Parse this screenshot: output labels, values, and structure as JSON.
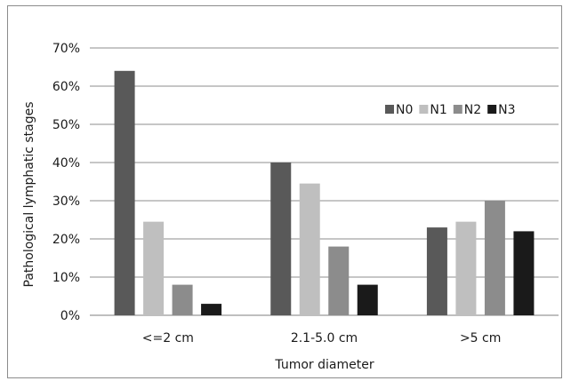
{
  "chart_data": {
    "type": "bar",
    "title": "",
    "xlabel": "Tumor diameter",
    "ylabel": "Pathological lymphatic stages",
    "categories": [
      "<=2 cm",
      "2.1-5.0 cm",
      ">5 cm"
    ],
    "series": [
      {
        "name": "N0",
        "values": [
          64,
          40,
          23
        ],
        "color": "#595959"
      },
      {
        "name": "N1",
        "values": [
          24.5,
          34.5,
          24.5
        ],
        "color": "#bfbfbf"
      },
      {
        "name": "N2",
        "values": [
          8,
          18,
          30
        ],
        "color": "#8c8c8c"
      },
      {
        "name": "N3",
        "values": [
          3,
          8,
          22
        ],
        "color": "#1a1a1a"
      }
    ],
    "ylim": [
      0,
      70
    ],
    "yticks": [
      0,
      10,
      20,
      30,
      40,
      50,
      60,
      70
    ],
    "ytick_labels": [
      "0%",
      "10%",
      "20%",
      "30%",
      "40%",
      "50%",
      "60%",
      "70%"
    ],
    "grid": true,
    "legend_position": "upper-right"
  }
}
